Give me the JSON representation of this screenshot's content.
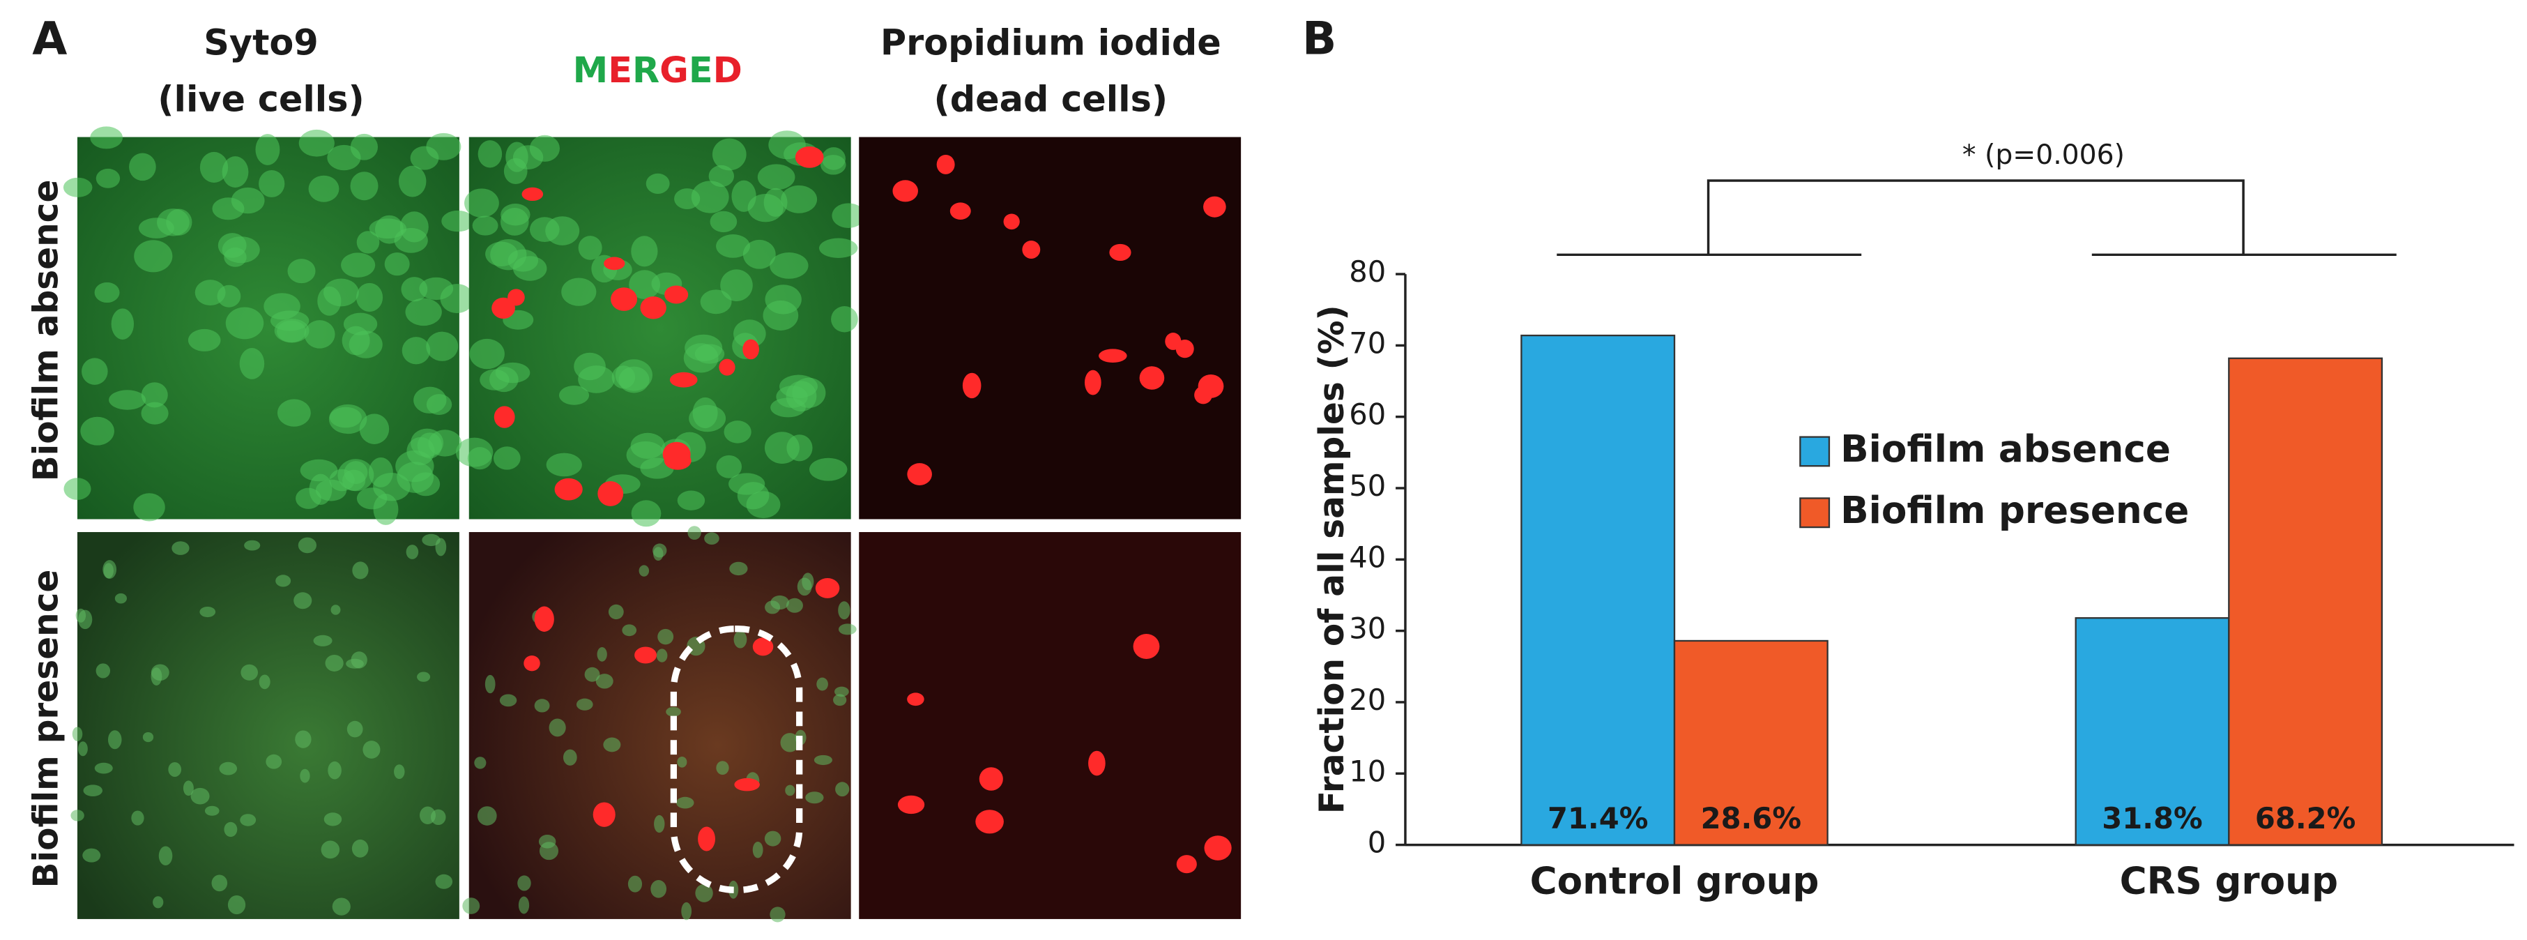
{
  "panel_a": {
    "label": "A",
    "columns": [
      [
        "Syto9",
        "(live cells)"
      ],
      [
        "MERGED"
      ],
      [
        "Propidium iodide",
        "(dead cells)"
      ]
    ],
    "rows": [
      "Biofilm absence",
      "Biofilm presence"
    ]
  },
  "chart_data": {
    "type": "bar",
    "panel_label": "B",
    "ylabel": "Fraction of all samples (%)",
    "annotation": "* (p=0.006)",
    "categories": [
      "Control group",
      "CRS group"
    ],
    "series": [
      {
        "name": "Biofilm absence",
        "color": "#29a8e0",
        "values": [
          71.4,
          31.8
        ],
        "value_labels": [
          "71.4%",
          "31.8%"
        ]
      },
      {
        "name": "Biofilm presence",
        "color": "#f05a28",
        "values": [
          28.6,
          68.2
        ],
        "value_labels": [
          "28.6%",
          "68.2%"
        ]
      }
    ],
    "ylim": [
      0,
      80
    ],
    "yticks": [
      0,
      10,
      20,
      30,
      40,
      50,
      60,
      70,
      80
    ],
    "grid": false
  }
}
